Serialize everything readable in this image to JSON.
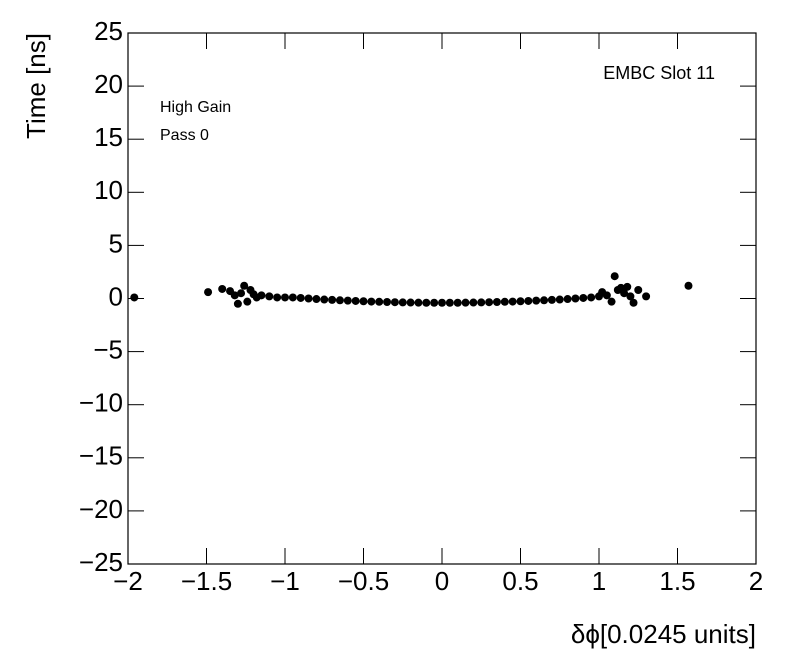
{
  "chart_data": {
    "type": "scatter",
    "title": "EMBC Slot 11",
    "annotations": [
      "High Gain",
      "Pass 0"
    ],
    "xlabel": "δϕ[0.0245 units]",
    "ylabel": "Time [ns]",
    "color": "#000000",
    "xlim": [
      -2,
      2
    ],
    "ylim": [
      -25,
      25
    ],
    "xticks": [
      {
        "value": -2,
        "label": "−2"
      },
      {
        "value": -1.5,
        "label": "−1.5"
      },
      {
        "value": -1,
        "label": "−1"
      },
      {
        "value": -0.5,
        "label": "−0.5"
      },
      0,
      0.5,
      1,
      1.5,
      2
    ],
    "yticks": [
      {
        "value": -25,
        "label": "−25"
      },
      {
        "value": -20,
        "label": "−20"
      },
      {
        "value": -15,
        "label": "−15"
      },
      {
        "value": -10,
        "label": "−10"
      },
      {
        "value": -5,
        "label": "−5"
      },
      0,
      5,
      10,
      15,
      20,
      25
    ],
    "x": [
      -1.96,
      -1.49,
      -1.4,
      -1.35,
      -1.32,
      -1.3,
      -1.28,
      -1.26,
      -1.24,
      -1.22,
      -1.2,
      -1.18,
      -1.15,
      -1.1,
      -1.05,
      -1.0,
      -0.95,
      -0.9,
      -0.85,
      -0.8,
      -0.75,
      -0.7,
      -0.65,
      -0.6,
      -0.55,
      -0.5,
      -0.45,
      -0.4,
      -0.35,
      -0.3,
      -0.25,
      -0.2,
      -0.15,
      -0.1,
      -0.05,
      0,
      0.05,
      0.1,
      0.15,
      0.2,
      0.25,
      0.3,
      0.35,
      0.4,
      0.45,
      0.5,
      0.55,
      0.6,
      0.65,
      0.7,
      0.75,
      0.8,
      0.85,
      0.9,
      0.95,
      1.0,
      1.02,
      1.05,
      1.08,
      1.1,
      1.12,
      1.14,
      1.16,
      1.18,
      1.2,
      1.22,
      1.25,
      1.3,
      1.57
    ],
    "values": [
      0.1,
      0.6,
      0.9,
      0.7,
      0.3,
      -0.5,
      0.5,
      1.2,
      -0.3,
      0.8,
      0.4,
      0.1,
      0.3,
      0.2,
      0.1,
      0.1,
      0.1,
      0.05,
      0.0,
      -0.05,
      -0.1,
      -0.13,
      -0.17,
      -0.2,
      -0.23,
      -0.26,
      -0.29,
      -0.31,
      -0.33,
      -0.35,
      -0.37,
      -0.38,
      -0.39,
      -0.4,
      -0.4,
      -0.4,
      -0.4,
      -0.4,
      -0.39,
      -0.38,
      -0.37,
      -0.35,
      -0.33,
      -0.31,
      -0.29,
      -0.26,
      -0.23,
      -0.2,
      -0.17,
      -0.13,
      -0.1,
      -0.05,
      0.0,
      0.05,
      0.1,
      0.2,
      0.6,
      0.3,
      -0.3,
      2.1,
      0.8,
      1.0,
      0.5,
      1.1,
      0.2,
      -0.4,
      0.8,
      0.2,
      1.2
    ]
  }
}
